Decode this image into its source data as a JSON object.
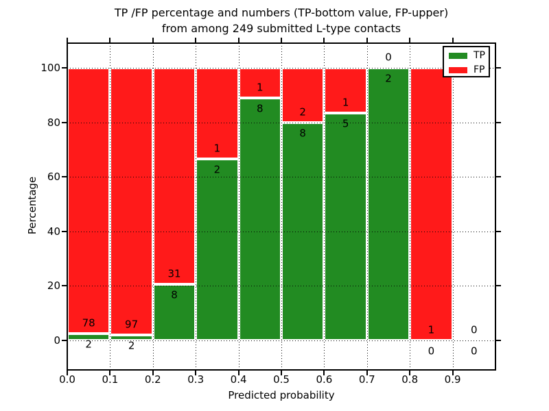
{
  "title": {
    "line1": "TP /FP percentage and numbers (TP-bottom value, FP-upper)",
    "line2": "from among 249 submitted L-type contacts"
  },
  "chart_data": {
    "type": "bar",
    "stacked": true,
    "percentage_normalized": true,
    "title": "TP /FP percentage and numbers (TP-bottom value, FP-upper) from among 249 submitted L-type contacts",
    "xlabel": "Predicted probability",
    "ylabel": "Percentage",
    "categories": [
      "0.0-0.1",
      "0.1-0.2",
      "0.2-0.3",
      "0.3-0.4",
      "0.4-0.5",
      "0.5-0.6",
      "0.6-0.7",
      "0.7-0.8",
      "0.8-0.9",
      "0.9-1.0"
    ],
    "series": [
      {
        "name": "TP",
        "color": "#228b22",
        "values": [
          2,
          2,
          8,
          2,
          8,
          8,
          5,
          2,
          0,
          0
        ]
      },
      {
        "name": "FP",
        "color": "#ff1a1a",
        "values": [
          78,
          97,
          31,
          1,
          1,
          2,
          1,
          0,
          1,
          0
        ]
      }
    ],
    "tp_percent": [
      2.5,
      2.0,
      20.5,
      66.7,
      88.9,
      80.0,
      83.3,
      100.0,
      0.0,
      null
    ],
    "total_contacts": 249,
    "x_ticks": [
      0.0,
      0.1,
      0.2,
      0.3,
      0.4,
      0.5,
      0.6,
      0.7,
      0.8,
      0.9
    ],
    "x_tick_labels": [
      "0.0",
      "0.1",
      "0.2",
      "0.3",
      "0.4",
      "0.5",
      "0.6",
      "0.7",
      "0.8",
      "0.9"
    ],
    "y_ticks": [
      0,
      20,
      40,
      60,
      80,
      100
    ],
    "y_tick_labels": [
      "0",
      "20",
      "40",
      "60",
      "80",
      "100"
    ],
    "xlim": [
      0.0,
      1.0
    ],
    "ylim": [
      -10.9,
      109.2
    ],
    "grid": {
      "style": "dotted",
      "color": "#000000"
    },
    "legend": {
      "position": "upper right",
      "entries": [
        "TP",
        "FP"
      ]
    },
    "bar_edge_color": "#ffffff",
    "background": "#ffffff",
    "annotation_note": "FP count printed above TP segment top, TP count printed below it"
  }
}
